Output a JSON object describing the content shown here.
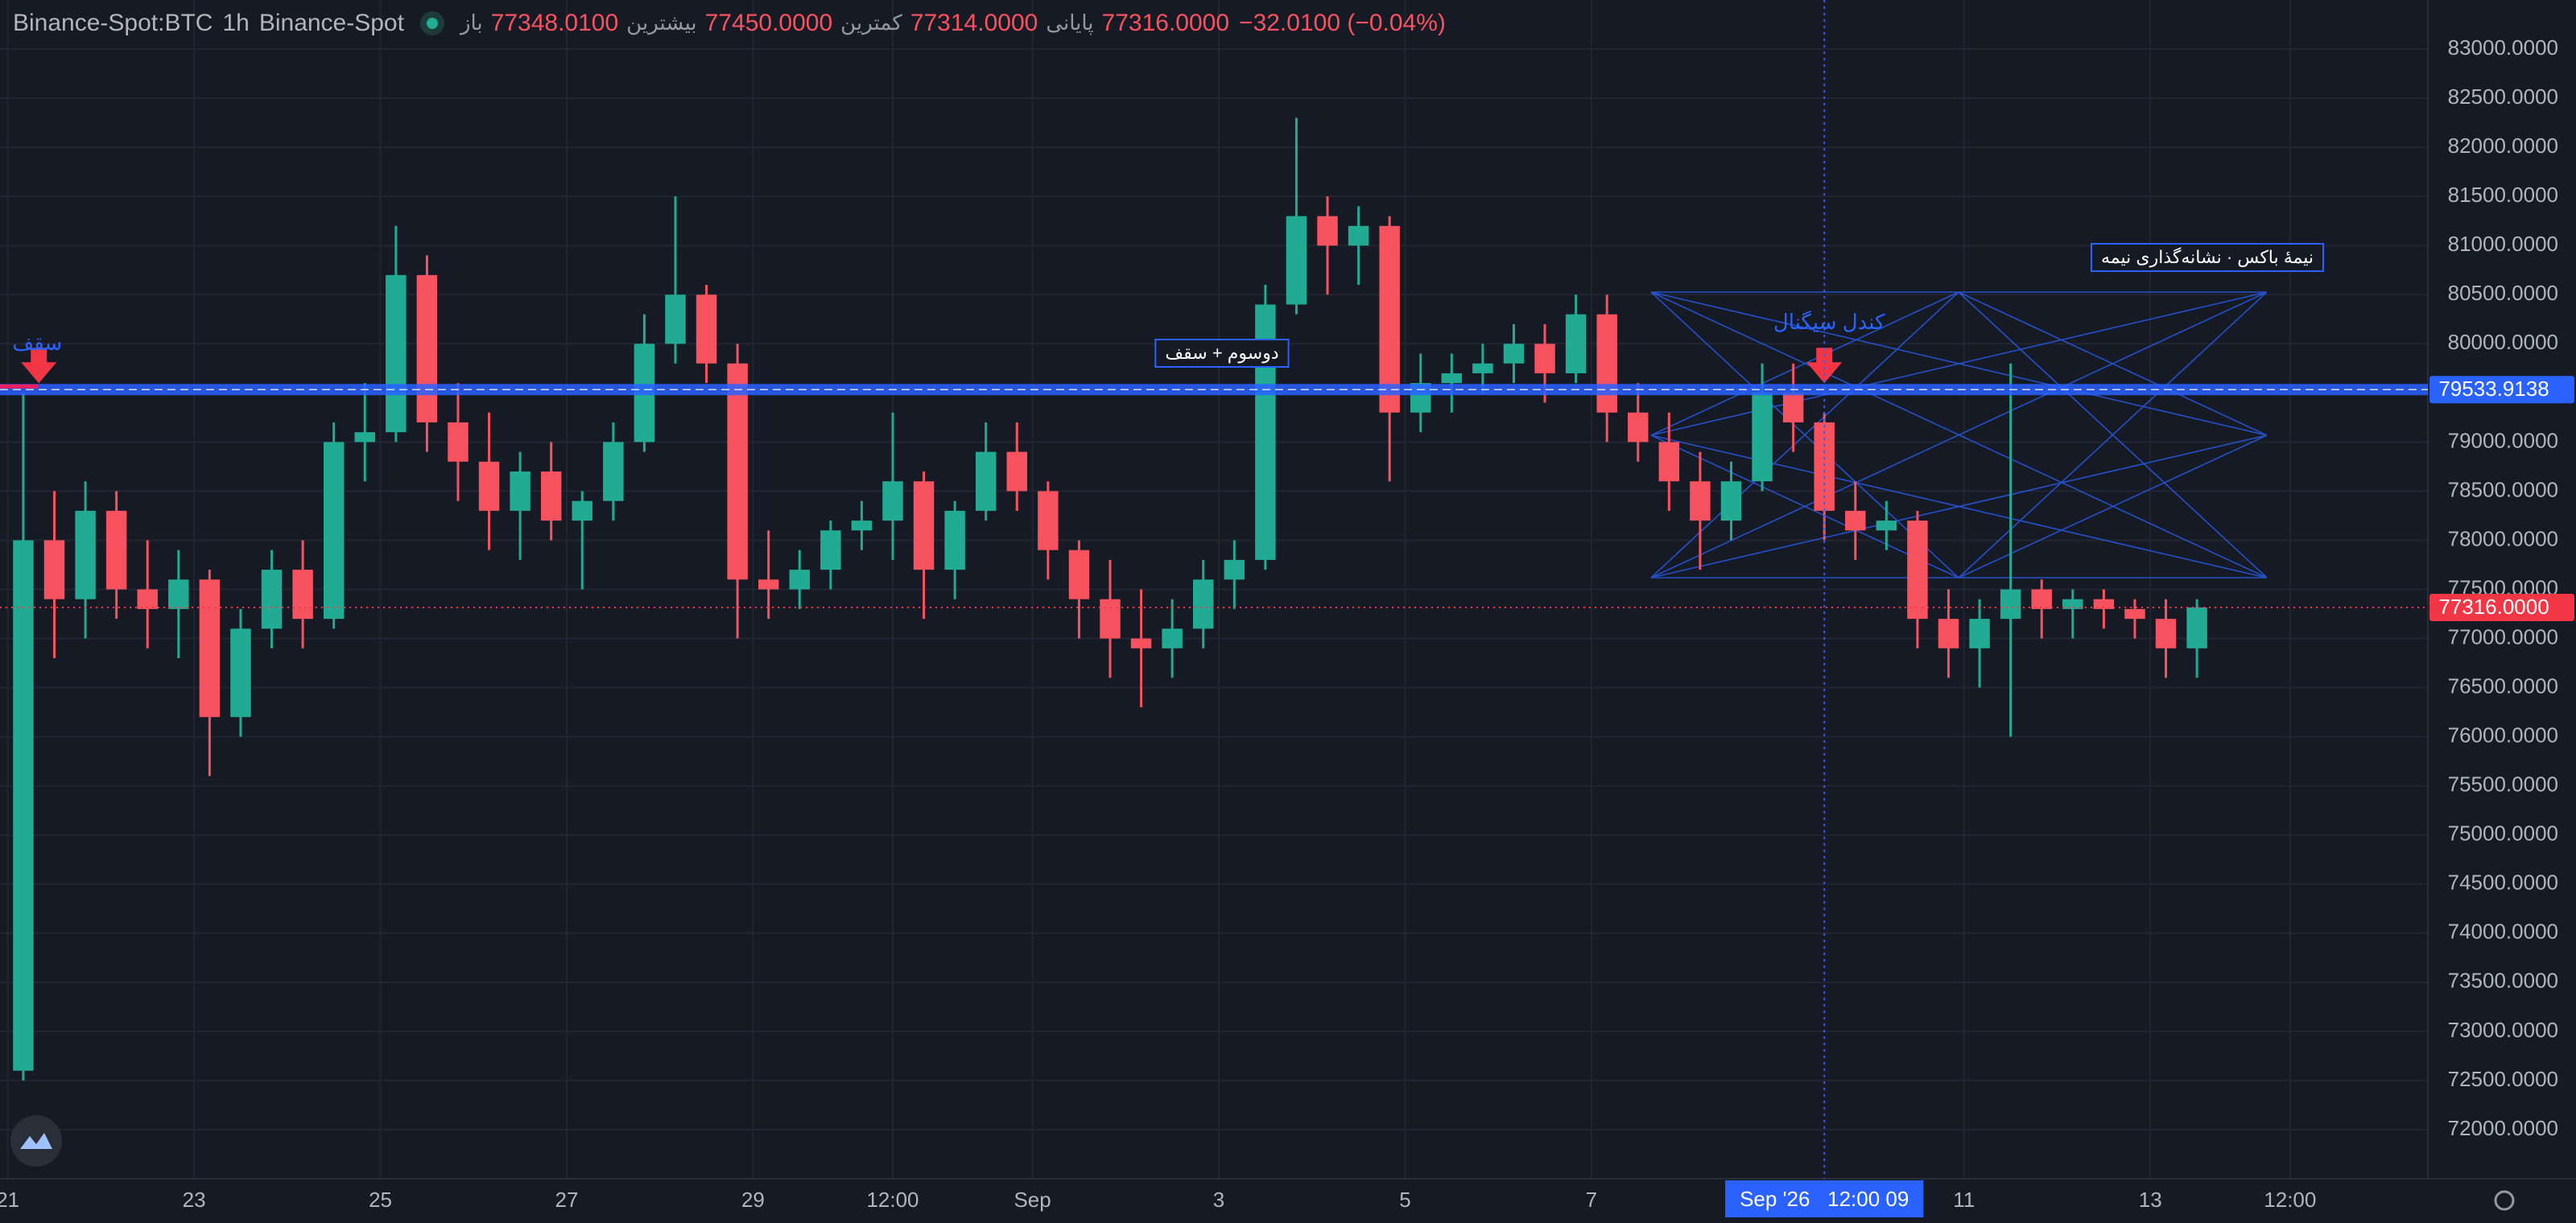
{
  "chart_data": {
    "type": "candlestick",
    "symbol": "Binance-Spot:BTC",
    "interval": "1h",
    "exchange": "Binance-Spot",
    "ohlc": [
      {
        "label": "باز",
        "value": "77348.0100"
      },
      {
        "label": "بیشترین",
        "value": "77450.0000"
      },
      {
        "label": "کمترین",
        "value": "77314.0000"
      },
      {
        "label": "پایانی",
        "value": "77316.0000"
      }
    ],
    "change": "−32.0100 (−0.04%)",
    "up_color": "#22ab94",
    "down_color": "#f7525f",
    "grid": true,
    "x": [
      "2026-08-21T00:00",
      "2026-08-21T08:00",
      "2026-08-21T16:00",
      "2026-08-22T00:00",
      "2026-08-22T08:00",
      "2026-08-22T16:00",
      "2026-08-23T00:00",
      "2026-08-23T08:00",
      "2026-08-23T16:00",
      "2026-08-24T00:00",
      "2026-08-24T08:00",
      "2026-08-24T16:00",
      "2026-08-25T00:00",
      "2026-08-25T08:00",
      "2026-08-25T16:00",
      "2026-08-26T00:00",
      "2026-08-26T08:00",
      "2026-08-26T16:00",
      "2026-08-27T00:00",
      "2026-08-27T08:00",
      "2026-08-27T16:00",
      "2026-08-28T00:00",
      "2026-08-28T08:00",
      "2026-08-28T16:00",
      "2026-08-29T00:00",
      "2026-08-29T08:00",
      "2026-08-29T16:00",
      "2026-08-30T00:00",
      "2026-08-30T08:00",
      "2026-08-30T16:00",
      "2026-08-31T00:00",
      "2026-08-31T08:00",
      "2026-08-31T16:00",
      "2026-09-01T00:00",
      "2026-09-01T08:00",
      "2026-09-01T16:00",
      "2026-09-02T00:00",
      "2026-09-02T08:00",
      "2026-09-02T16:00",
      "2026-09-03T00:00",
      "2026-09-03T08:00",
      "2026-09-03T16:00",
      "2026-09-04T00:00",
      "2026-09-04T08:00",
      "2026-09-04T16:00",
      "2026-09-05T00:00",
      "2026-09-05T08:00",
      "2026-09-05T16:00",
      "2026-09-06T00:00",
      "2026-09-06T08:00",
      "2026-09-06T16:00",
      "2026-09-07T00:00",
      "2026-09-07T08:00",
      "2026-09-07T16:00",
      "2026-09-08T00:00",
      "2026-09-08T08:00",
      "2026-09-08T16:00",
      "2026-09-09T00:00",
      "2026-09-09T08:00",
      "2026-09-09T16:00",
      "2026-09-10T00:00",
      "2026-09-10T08:00",
      "2026-09-10T16:00",
      "2026-09-11T00:00",
      "2026-09-11T08:00",
      "2026-09-11T16:00",
      "2026-09-12T00:00",
      "2026-09-12T08:00",
      "2026-09-12T16:00",
      "2026-09-13T00:00",
      "2026-09-13T08:00"
    ],
    "open": [
      72600,
      78000,
      77400,
      78300,
      77500,
      77300,
      77600,
      76200,
      77100,
      77700,
      77200,
      79000,
      79100,
      80700,
      79200,
      78800,
      78300,
      78700,
      78200,
      78400,
      79000,
      80000,
      80500,
      79800,
      77600,
      77500,
      77700,
      78100,
      78200,
      78600,
      77700,
      78300,
      78900,
      78500,
      77900,
      77400,
      77000,
      76900,
      77100,
      77600,
      77800,
      80400,
      81300,
      81000,
      81200,
      79300,
      79600,
      79700,
      79800,
      80000,
      79700,
      80300,
      79300,
      79000,
      78600,
      78200,
      78600,
      79500,
      79200,
      78300,
      78100,
      78200,
      77200,
      76900,
      77200,
      77500,
      77300,
      77400,
      77300,
      77200,
      76900
    ],
    "high": [
      79500,
      78500,
      78600,
      78500,
      78000,
      77900,
      77700,
      77300,
      77900,
      78000,
      79200,
      79600,
      81200,
      80900,
      79600,
      79300,
      78900,
      79000,
      78500,
      79200,
      80300,
      81500,
      80600,
      80000,
      78100,
      77900,
      78200,
      78400,
      79300,
      78700,
      78400,
      79200,
      79200,
      78600,
      78000,
      77800,
      77500,
      77400,
      77800,
      78000,
      80600,
      82300,
      81500,
      81400,
      81300,
      79900,
      79900,
      80000,
      80200,
      80200,
      80500,
      80500,
      79600,
      79300,
      78900,
      78800,
      79800,
      79800,
      79300,
      78600,
      78400,
      78300,
      77500,
      77400,
      79800,
      77600,
      77500,
      77500,
      77400,
      77400,
      77400
    ],
    "low": [
      72500,
      76800,
      77000,
      77200,
      76900,
      76800,
      75600,
      76000,
      76900,
      76900,
      77100,
      78600,
      79000,
      78900,
      78400,
      77900,
      77800,
      78000,
      77500,
      78200,
      78900,
      79800,
      79600,
      77000,
      77200,
      77300,
      77500,
      77900,
      77800,
      77200,
      77400,
      78200,
      78300,
      77600,
      77000,
      76600,
      76300,
      76600,
      76900,
      77300,
      77700,
      80300,
      80500,
      80600,
      78600,
      79100,
      79300,
      79500,
      79600,
      79400,
      79600,
      79000,
      78800,
      78300,
      77700,
      78000,
      78500,
      78900,
      78000,
      77800,
      77900,
      76900,
      76600,
      76500,
      76000,
      77000,
      77000,
      77100,
      77000,
      76600,
      76600
    ],
    "close": [
      78000,
      77400,
      78300,
      77500,
      77300,
      77600,
      76200,
      77100,
      77700,
      77200,
      79000,
      79100,
      80700,
      79200,
      78800,
      78300,
      78700,
      78200,
      78400,
      79000,
      80000,
      80500,
      79800,
      77600,
      77500,
      77700,
      78100,
      78200,
      78600,
      77700,
      78300,
      78900,
      78500,
      77900,
      77400,
      77000,
      76900,
      77100,
      77600,
      77800,
      80400,
      81300,
      81000,
      81200,
      79300,
      79600,
      79700,
      79800,
      80000,
      79700,
      80300,
      79300,
      79000,
      78600,
      78200,
      78600,
      79500,
      79200,
      78300,
      78100,
      78200,
      77200,
      76900,
      77200,
      77500,
      77300,
      77400,
      77300,
      77200,
      76900,
      77316
    ],
    "xlim": [
      "2026-08-20T22:00",
      "2026-09-15T23:30"
    ],
    "xticks": [
      {
        "value": "2026-08-21T00:00",
        "label": "21"
      },
      {
        "value": "2026-08-23T00:00",
        "label": "23"
      },
      {
        "value": "2026-08-25T00:00",
        "label": "25"
      },
      {
        "value": "2026-08-27T00:00",
        "label": "27"
      },
      {
        "value": "2026-08-29T00:00",
        "label": "29"
      },
      {
        "value": "2026-08-30T12:00",
        "label": "12:00"
      },
      {
        "value": "2026-09-01T00:00",
        "label": "Sep"
      },
      {
        "value": "2026-09-03T00:00",
        "label": "3"
      },
      {
        "value": "2026-09-05T00:00",
        "label": "5"
      },
      {
        "value": "2026-09-07T00:00",
        "label": "7"
      },
      {
        "value": "2026-09-11T00:00",
        "label": "11"
      },
      {
        "value": "2026-09-13T00:00",
        "label": "13"
      },
      {
        "value": "2026-09-14T12:00",
        "label": "12:00"
      }
    ],
    "ylim": [
      71500,
      83500
    ],
    "yticks": [
      {
        "value": 72000,
        "label": "72000.0000"
      },
      {
        "value": 72500,
        "label": "72500.0000"
      },
      {
        "value": 73000,
        "label": "73000.0000"
      },
      {
        "value": 73500,
        "label": "73500.0000"
      },
      {
        "value": 74000,
        "label": "74000.0000"
      },
      {
        "value": 74500,
        "label": "74500.0000"
      },
      {
        "value": 75000,
        "label": "75000.0000"
      },
      {
        "value": 75500,
        "label": "75500.0000"
      },
      {
        "value": 76000,
        "label": "76000.0000"
      },
      {
        "value": 76500,
        "label": "76500.0000"
      },
      {
        "value": 77000,
        "label": "77000.0000"
      },
      {
        "value": 77500,
        "label": "77500.0000"
      },
      {
        "value": 78000,
        "label": "78000.0000"
      },
      {
        "value": 78500,
        "label": "78500.0000"
      },
      {
        "value": 79000,
        "label": "79000.0000"
      },
      {
        "value": 79500,
        "label": "79500.0000"
      },
      {
        "value": 80000,
        "label": "80000.0000"
      },
      {
        "value": 80500,
        "label": "80500.0000"
      },
      {
        "value": 81000,
        "label": "81000.0000"
      },
      {
        "value": 81500,
        "label": "81500.0000"
      },
      {
        "value": 82000,
        "label": "82000.0000"
      },
      {
        "value": 82500,
        "label": "82500.0000"
      },
      {
        "value": 83000,
        "label": "83000.0000"
      }
    ],
    "price_lines": [
      {
        "value": 79533.9138,
        "label": "79533.9138",
        "color": "#2962ff"
      },
      {
        "value": 77316,
        "label": "77316.0000",
        "color": "#f23645"
      }
    ],
    "crosshair": {
      "x": "2026-09-09T12:00",
      "label": "Sep '26   12:00 09"
    },
    "signals": [
      {
        "x": "2026-08-21T08:00",
        "text": "سقف"
      },
      {
        "x": "2026-09-09T12:00",
        "text": "کندل سیگنال"
      }
    ],
    "notes": [
      "دوسوم + سقف",
      "نیمهٔ باکس · نشانه‌گذاری نیمه"
    ]
  }
}
